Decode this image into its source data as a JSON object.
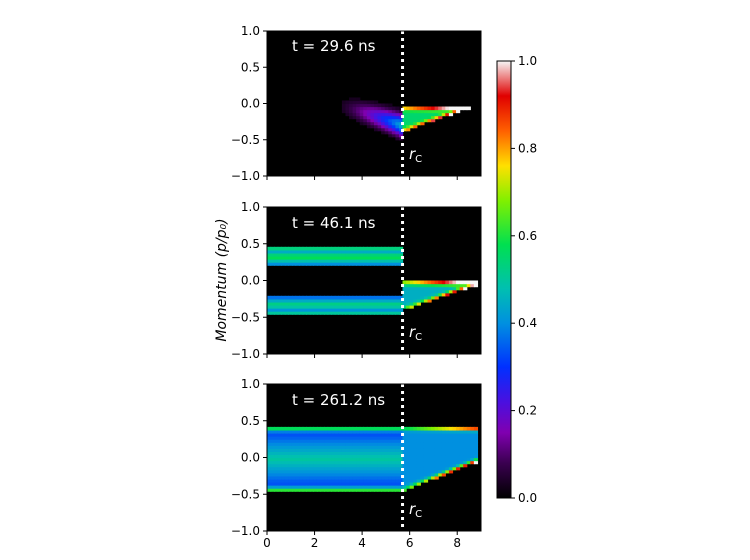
{
  "chart_data": [
    {
      "type": "heatmap",
      "annotation": "t = 29.6 ns",
      "marker_label": "r_C",
      "marker_x": 5.7,
      "xlim": [
        0,
        9
      ],
      "ylim": [
        -1.0,
        1.0
      ],
      "yticks": [
        "1.0",
        "0.5",
        "0.0",
        "−0.5",
        "−1.0"
      ],
      "xtick_labels_shown": false,
      "features": [
        {
          "kind": "tail",
          "x_start": 2.5,
          "x_end": 5.7,
          "y_end": -0.3,
          "width": 0.14,
          "amp": 0.45
        },
        {
          "kind": "wedge",
          "x_start": 5.7,
          "x_end": 8.9,
          "y_top": -0.05,
          "y_bot_start": -0.38,
          "y_bot_end": -0.02,
          "amp": 0.55
        }
      ]
    },
    {
      "type": "heatmap",
      "annotation": "t = 46.1 ns",
      "marker_label": "r_C",
      "marker_x": 5.7,
      "xlim": [
        0,
        9
      ],
      "ylim": [
        -1.0,
        1.0
      ],
      "yticks": [
        "1.0",
        "0.5",
        "0.0",
        "−0.5",
        "−1.0"
      ],
      "xtick_labels_shown": false,
      "features": [
        {
          "kind": "band",
          "x_start": 0,
          "x_end": 5.7,
          "y_top": 0.45,
          "y_bot": 0.2,
          "amp": 0.6
        },
        {
          "kind": "band",
          "x_start": 0,
          "x_end": 5.7,
          "y_top": -0.2,
          "y_bot": -0.45,
          "amp": 0.55
        },
        {
          "kind": "wedge",
          "x_start": 5.7,
          "x_end": 8.9,
          "y_top": -0.02,
          "y_bot_start": -0.4,
          "y_bot_end": -0.05,
          "amp": 0.45
        }
      ]
    },
    {
      "type": "heatmap",
      "annotation": "t = 261.2 ns",
      "marker_label": "r_C",
      "marker_x": 5.7,
      "xlim": [
        0,
        9
      ],
      "ylim": [
        -1.0,
        1.0
      ],
      "yticks": [
        "1.0",
        "0.5",
        "0.0",
        "−0.5",
        "−1.0"
      ],
      "xticks": [
        "0",
        "2",
        "4",
        "6",
        "8"
      ],
      "xtick_labels_shown": true,
      "features": [
        {
          "kind": "band",
          "x_start": 0,
          "x_end": 5.7,
          "y_top": 0.42,
          "y_bot": -0.45,
          "amp": 0.5
        },
        {
          "kind": "wedge",
          "x_start": 5.7,
          "x_end": 8.9,
          "y_top": 0.42,
          "y_bot_start": -0.45,
          "y_bot_end": -0.05,
          "amp": 0.4
        }
      ]
    }
  ],
  "ylabel": "Momentum (p/p₀)",
  "colorbar": {
    "cmap": "gnuplot2-like rainbow (black-purple-blue-cyan-green-yellow-red-white)",
    "vmin": 0.0,
    "vmax": 1.0,
    "ticks": [
      "1.0",
      "0.8",
      "0.6",
      "0.4",
      "0.2",
      "0.0"
    ]
  }
}
